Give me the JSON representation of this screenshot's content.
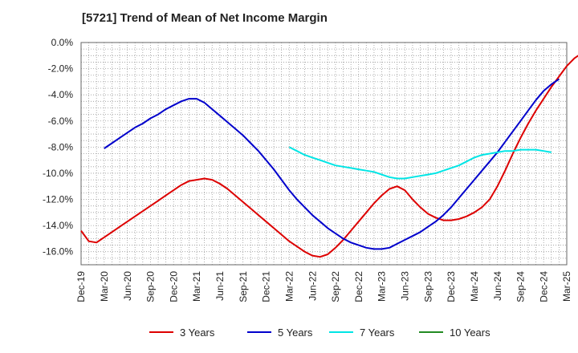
{
  "chart_data": {
    "type": "line",
    "title": "[5721]  Trend of Mean of Net Income Margin",
    "xlabel": "",
    "ylabel": "",
    "x_ticks": [
      "Dec-19",
      "Mar-20",
      "Jun-20",
      "Sep-20",
      "Dec-20",
      "Mar-21",
      "Jun-21",
      "Sep-21",
      "Dec-21",
      "Mar-22",
      "Jun-22",
      "Sep-22",
      "Dec-22",
      "Mar-23",
      "Jun-23",
      "Sep-23",
      "Dec-23",
      "Mar-24",
      "Jun-24",
      "Sep-24",
      "Dec-24",
      "Mar-25"
    ],
    "y_ticks": [
      "0.0%",
      "-2.0%",
      "-4.0%",
      "-6.0%",
      "-8.0%",
      "-10.0%",
      "-12.0%",
      "-14.0%",
      "-16.0%"
    ],
    "ylim": [
      -17,
      0
    ],
    "x_range": [
      "Dec-19",
      "Mar-25"
    ],
    "grid": true,
    "legend_position": "bottom",
    "series": [
      {
        "name": "3 Years",
        "color": "#dd0000",
        "points": [
          [
            "Dec-19",
            -14.4
          ],
          [
            "Jan-20",
            -15.2
          ],
          [
            "Feb-20",
            -15.3
          ],
          [
            "Mar-20",
            -14.9
          ],
          [
            "Apr-20",
            -14.5
          ],
          [
            "May-20",
            -14.1
          ],
          [
            "Jun-20",
            -13.7
          ],
          [
            "Jul-20",
            -13.3
          ],
          [
            "Aug-20",
            -12.9
          ],
          [
            "Sep-20",
            -12.5
          ],
          [
            "Oct-20",
            -12.1
          ],
          [
            "Nov-20",
            -11.7
          ],
          [
            "Dec-20",
            -11.3
          ],
          [
            "Jan-21",
            -10.9
          ],
          [
            "Feb-21",
            -10.6
          ],
          [
            "Mar-21",
            -10.5
          ],
          [
            "Apr-21",
            -10.4
          ],
          [
            "May-21",
            -10.5
          ],
          [
            "Jun-21",
            -10.8
          ],
          [
            "Jul-21",
            -11.2
          ],
          [
            "Aug-21",
            -11.7
          ],
          [
            "Sep-21",
            -12.2
          ],
          [
            "Oct-21",
            -12.7
          ],
          [
            "Nov-21",
            -13.2
          ],
          [
            "Dec-21",
            -13.7
          ],
          [
            "Jan-22",
            -14.2
          ],
          [
            "Feb-22",
            -14.7
          ],
          [
            "Mar-22",
            -15.2
          ],
          [
            "Apr-22",
            -15.6
          ],
          [
            "May-22",
            -16.0
          ],
          [
            "Jun-22",
            -16.3
          ],
          [
            "Jul-22",
            -16.4
          ],
          [
            "Aug-22",
            -16.2
          ],
          [
            "Sep-22",
            -15.7
          ],
          [
            "Oct-22",
            -15.1
          ],
          [
            "Nov-22",
            -14.4
          ],
          [
            "Dec-22",
            -13.7
          ],
          [
            "Jan-23",
            -13.0
          ],
          [
            "Feb-23",
            -12.3
          ],
          [
            "Mar-23",
            -11.7
          ],
          [
            "Apr-23",
            -11.2
          ],
          [
            "May-23",
            -11.0
          ],
          [
            "Jun-23",
            -11.3
          ],
          [
            "Jul-23",
            -12.0
          ],
          [
            "Aug-23",
            -12.6
          ],
          [
            "Sep-23",
            -13.1
          ],
          [
            "Oct-23",
            -13.4
          ],
          [
            "Nov-23",
            -13.6
          ],
          [
            "Dec-23",
            -13.6
          ],
          [
            "Jan-24",
            -13.5
          ],
          [
            "Feb-24",
            -13.3
          ],
          [
            "Mar-24",
            -13.0
          ],
          [
            "Apr-24",
            -12.6
          ],
          [
            "May-24",
            -12.0
          ],
          [
            "Jun-24",
            -11.0
          ],
          [
            "Jul-24",
            -9.8
          ],
          [
            "Aug-24",
            -8.5
          ],
          [
            "Sep-24",
            -7.3
          ],
          [
            "Oct-24",
            -6.2
          ],
          [
            "Nov-24",
            -5.2
          ],
          [
            "Dec-24",
            -4.3
          ],
          [
            "Jan-25",
            -3.4
          ],
          [
            "Feb-25",
            -2.6
          ],
          [
            "Mar-25",
            -1.8
          ],
          [
            "Apr-25",
            -1.2
          ],
          [
            "May-25",
            -0.8
          ]
        ]
      },
      {
        "name": "5 Years",
        "color": "#0000cc",
        "points": [
          [
            "Mar-20",
            -8.1
          ],
          [
            "Apr-20",
            -7.7
          ],
          [
            "May-20",
            -7.3
          ],
          [
            "Jun-20",
            -6.9
          ],
          [
            "Jul-20",
            -6.5
          ],
          [
            "Aug-20",
            -6.2
          ],
          [
            "Sep-20",
            -5.8
          ],
          [
            "Oct-20",
            -5.5
          ],
          [
            "Nov-20",
            -5.1
          ],
          [
            "Dec-20",
            -4.8
          ],
          [
            "Jan-21",
            -4.5
          ],
          [
            "Feb-21",
            -4.3
          ],
          [
            "Mar-21",
            -4.3
          ],
          [
            "Apr-21",
            -4.6
          ],
          [
            "May-21",
            -5.1
          ],
          [
            "Jun-21",
            -5.6
          ],
          [
            "Jul-21",
            -6.1
          ],
          [
            "Aug-21",
            -6.6
          ],
          [
            "Sep-21",
            -7.1
          ],
          [
            "Oct-21",
            -7.7
          ],
          [
            "Nov-21",
            -8.3
          ],
          [
            "Dec-21",
            -9.0
          ],
          [
            "Jan-22",
            -9.7
          ],
          [
            "Feb-22",
            -10.5
          ],
          [
            "Mar-22",
            -11.3
          ],
          [
            "Apr-22",
            -12.0
          ],
          [
            "May-22",
            -12.6
          ],
          [
            "Jun-22",
            -13.2
          ],
          [
            "Jul-22",
            -13.7
          ],
          [
            "Aug-22",
            -14.2
          ],
          [
            "Sep-22",
            -14.6
          ],
          [
            "Oct-22",
            -15.0
          ],
          [
            "Nov-22",
            -15.3
          ],
          [
            "Dec-22",
            -15.5
          ],
          [
            "Jan-23",
            -15.7
          ],
          [
            "Feb-23",
            -15.8
          ],
          [
            "Mar-23",
            -15.8
          ],
          [
            "Apr-23",
            -15.7
          ],
          [
            "May-23",
            -15.4
          ],
          [
            "Jun-23",
            -15.1
          ],
          [
            "Jul-23",
            -14.8
          ],
          [
            "Aug-23",
            -14.5
          ],
          [
            "Sep-23",
            -14.1
          ],
          [
            "Oct-23",
            -13.7
          ],
          [
            "Nov-23",
            -13.2
          ],
          [
            "Dec-23",
            -12.6
          ],
          [
            "Jan-24",
            -11.9
          ],
          [
            "Feb-24",
            -11.2
          ],
          [
            "Mar-24",
            -10.5
          ],
          [
            "Apr-24",
            -9.8
          ],
          [
            "May-24",
            -9.1
          ],
          [
            "Jun-24",
            -8.4
          ],
          [
            "Jul-24",
            -7.6
          ],
          [
            "Aug-24",
            -6.8
          ],
          [
            "Sep-24",
            -6.0
          ],
          [
            "Oct-24",
            -5.2
          ],
          [
            "Nov-24",
            -4.4
          ],
          [
            "Dec-24",
            -3.7
          ],
          [
            "Jan-25",
            -3.2
          ],
          [
            "Feb-25",
            -2.8
          ]
        ]
      },
      {
        "name": "7 Years",
        "color": "#00e5e5",
        "points": [
          [
            "Mar-22",
            -8.0
          ],
          [
            "Apr-22",
            -8.3
          ],
          [
            "May-22",
            -8.6
          ],
          [
            "Jun-22",
            -8.8
          ],
          [
            "Jul-22",
            -9.0
          ],
          [
            "Aug-22",
            -9.2
          ],
          [
            "Sep-22",
            -9.4
          ],
          [
            "Oct-22",
            -9.5
          ],
          [
            "Nov-22",
            -9.6
          ],
          [
            "Dec-22",
            -9.7
          ],
          [
            "Jan-23",
            -9.8
          ],
          [
            "Feb-23",
            -9.9
          ],
          [
            "Mar-23",
            -10.1
          ],
          [
            "Apr-23",
            -10.3
          ],
          [
            "May-23",
            -10.4
          ],
          [
            "Jun-23",
            -10.4
          ],
          [
            "Jul-23",
            -10.3
          ],
          [
            "Aug-23",
            -10.2
          ],
          [
            "Sep-23",
            -10.1
          ],
          [
            "Oct-23",
            -10.0
          ],
          [
            "Nov-23",
            -9.8
          ],
          [
            "Dec-23",
            -9.6
          ],
          [
            "Jan-24",
            -9.4
          ],
          [
            "Feb-24",
            -9.1
          ],
          [
            "Mar-24",
            -8.8
          ],
          [
            "Apr-24",
            -8.6
          ],
          [
            "May-24",
            -8.5
          ],
          [
            "Jun-24",
            -8.4
          ],
          [
            "Jul-24",
            -8.3
          ],
          [
            "Aug-24",
            -8.3
          ],
          [
            "Sep-24",
            -8.2
          ],
          [
            "Oct-24",
            -8.2
          ],
          [
            "Nov-24",
            -8.2
          ],
          [
            "Dec-24",
            -8.3
          ],
          [
            "Jan-25",
            -8.4
          ]
        ]
      },
      {
        "name": "10 Years",
        "color": "#228b22",
        "points": []
      }
    ]
  }
}
